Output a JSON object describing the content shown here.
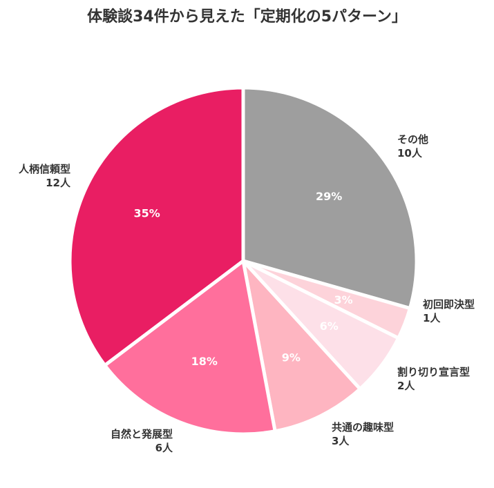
{
  "chart_data": {
    "type": "pie",
    "title": "体験談34件から見えた「定期化の5パターン」",
    "start_angle_deg": 90,
    "direction": "clockwise",
    "slices": [
      {
        "label": "その他",
        "count_label": "10人",
        "value": 10,
        "percent_label": "29%",
        "color": "#9e9e9e"
      },
      {
        "label": "初回即決型",
        "count_label": "1人",
        "value": 1,
        "percent_label": "3%",
        "color": "#fdd3da"
      },
      {
        "label": "割り切り宣言型",
        "count_label": "2人",
        "value": 2,
        "percent_label": "6%",
        "color": "#fde0e8"
      },
      {
        "label": "共通の趣味型",
        "count_label": "3人",
        "value": 3,
        "percent_label": "9%",
        "color": "#feb5c1"
      },
      {
        "label": "自然と発展型",
        "count_label": "6人",
        "value": 6,
        "percent_label": "18%",
        "color": "#ff6f9c"
      },
      {
        "label": "人柄信頼型",
        "count_label": "12人",
        "value": 12,
        "percent_label": "35%",
        "color": "#e91e63"
      }
    ],
    "legend": "none"
  }
}
